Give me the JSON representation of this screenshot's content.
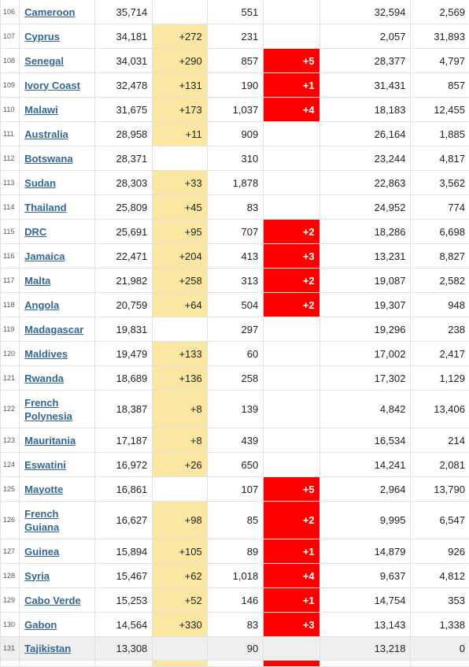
{
  "table": {
    "rows": [
      {
        "rank": "106",
        "country": "Cameroon",
        "total": "35,714",
        "new_cases": "",
        "deaths": "551",
        "new_deaths": "",
        "recovered": "32,594",
        "active": "2,569",
        "two_line": false
      },
      {
        "rank": "107",
        "country": "Cyprus",
        "total": "34,181",
        "new_cases": "+272",
        "deaths": "231",
        "new_deaths": "",
        "recovered": "2,057",
        "active": "31,893",
        "two_line": false
      },
      {
        "rank": "108",
        "country": "Senegal",
        "total": "34,031",
        "new_cases": "+290",
        "deaths": "857",
        "new_deaths": "+5",
        "recovered": "28,377",
        "active": "4,797",
        "two_line": false
      },
      {
        "rank": "109",
        "country": "Ivory Coast",
        "total": "32,478",
        "new_cases": "+131",
        "deaths": "190",
        "new_deaths": "+1",
        "recovered": "31,431",
        "active": "857",
        "two_line": false
      },
      {
        "rank": "110",
        "country": "Malawi",
        "total": "31,675",
        "new_cases": "+173",
        "deaths": "1,037",
        "new_deaths": "+4",
        "recovered": "18,183",
        "active": "12,455",
        "two_line": false
      },
      {
        "rank": "111",
        "country": "Australia",
        "total": "28,958",
        "new_cases": "+11",
        "deaths": "909",
        "new_deaths": "",
        "recovered": "26,164",
        "active": "1,885",
        "two_line": false
      },
      {
        "rank": "112",
        "country": "Botswana",
        "total": "28,371",
        "new_cases": "",
        "deaths": "310",
        "new_deaths": "",
        "recovered": "23,244",
        "active": "4,817",
        "two_line": false
      },
      {
        "rank": "113",
        "country": "Sudan",
        "total": "28,303",
        "new_cases": "+33",
        "deaths": "1,878",
        "new_deaths": "",
        "recovered": "22,863",
        "active": "3,562",
        "two_line": false
      },
      {
        "rank": "114",
        "country": "Thailand",
        "total": "25,809",
        "new_cases": "+45",
        "deaths": "83",
        "new_deaths": "",
        "recovered": "24,952",
        "active": "774",
        "two_line": false
      },
      {
        "rank": "115",
        "country": "DRC",
        "total": "25,691",
        "new_cases": "+95",
        "deaths": "707",
        "new_deaths": "+2",
        "recovered": "18,286",
        "active": "6,698",
        "two_line": false
      },
      {
        "rank": "116",
        "country": "Jamaica",
        "total": "22,471",
        "new_cases": "+204",
        "deaths": "413",
        "new_deaths": "+3",
        "recovered": "13,231",
        "active": "8,827",
        "two_line": false
      },
      {
        "rank": "117",
        "country": "Malta",
        "total": "21,982",
        "new_cases": "+258",
        "deaths": "313",
        "new_deaths": "+2",
        "recovered": "19,087",
        "active": "2,582",
        "two_line": false
      },
      {
        "rank": "118",
        "country": "Angola",
        "total": "20,759",
        "new_cases": "+64",
        "deaths": "504",
        "new_deaths": "+2",
        "recovered": "19,307",
        "active": "948",
        "two_line": false
      },
      {
        "rank": "119",
        "country": "Madagascar",
        "total": "19,831",
        "new_cases": "",
        "deaths": "297",
        "new_deaths": "",
        "recovered": "19,296",
        "active": "238",
        "two_line": false
      },
      {
        "rank": "120",
        "country": "Maldives",
        "total": "19,479",
        "new_cases": "+133",
        "deaths": "60",
        "new_deaths": "",
        "recovered": "17,002",
        "active": "2,417",
        "two_line": false
      },
      {
        "rank": "121",
        "country": "Rwanda",
        "total": "18,689",
        "new_cases": "+136",
        "deaths": "258",
        "new_deaths": "",
        "recovered": "17,302",
        "active": "1,129",
        "two_line": false
      },
      {
        "rank": "122",
        "country": "French Polynesia",
        "total": "18,387",
        "new_cases": "+8",
        "deaths": "139",
        "new_deaths": "",
        "recovered": "4,842",
        "active": "13,406",
        "two_line": true
      },
      {
        "rank": "123",
        "country": "Mauritania",
        "total": "17,187",
        "new_cases": "+8",
        "deaths": "439",
        "new_deaths": "",
        "recovered": "16,534",
        "active": "214",
        "two_line": false
      },
      {
        "rank": "124",
        "country": "Eswatini",
        "total": "16,972",
        "new_cases": "+26",
        "deaths": "650",
        "new_deaths": "",
        "recovered": "14,241",
        "active": "2,081",
        "two_line": false
      },
      {
        "rank": "125",
        "country": "Mayotte",
        "total": "16,861",
        "new_cases": "",
        "deaths": "107",
        "new_deaths": "+5",
        "recovered": "2,964",
        "active": "13,790",
        "two_line": false
      },
      {
        "rank": "126",
        "country": "French Guiana",
        "total": "16,627",
        "new_cases": "+98",
        "deaths": "85",
        "new_deaths": "+2",
        "recovered": "9,995",
        "active": "6,547",
        "two_line": true
      },
      {
        "rank": "127",
        "country": "Guinea",
        "total": "15,894",
        "new_cases": "+105",
        "deaths": "89",
        "new_deaths": "+1",
        "recovered": "14,879",
        "active": "926",
        "two_line": false
      },
      {
        "rank": "128",
        "country": "Syria",
        "total": "15,467",
        "new_cases": "+62",
        "deaths": "1,018",
        "new_deaths": "+4",
        "recovered": "9,637",
        "active": "4,812",
        "two_line": false
      },
      {
        "rank": "129",
        "country": "Cabo Verde",
        "total": "15,253",
        "new_cases": "+52",
        "deaths": "146",
        "new_deaths": "+1",
        "recovered": "14,754",
        "active": "353",
        "two_line": false
      },
      {
        "rank": "130",
        "country": "Gabon",
        "total": "14,564",
        "new_cases": "+330",
        "deaths": "83",
        "new_deaths": "+3",
        "recovered": "13,143",
        "active": "1,338",
        "two_line": false
      },
      {
        "rank": "131",
        "country": "Tajikistan",
        "total": "13,308",
        "new_cases": "",
        "deaths": "90",
        "new_deaths": "",
        "recovered": "13,218",
        "active": "0",
        "two_line": false,
        "last": true
      },
      {
        "rank": "",
        "country": "",
        "total": "",
        "new_cases": "",
        "deaths": "",
        "new_deaths": "",
        "recovered": "",
        "active": "",
        "two_line": false,
        "partial": true
      }
    ]
  },
  "colors": {
    "new_cases_highlight": "#fbe7a1",
    "new_deaths_highlight": "#ff0000",
    "country_link": "#336699"
  }
}
